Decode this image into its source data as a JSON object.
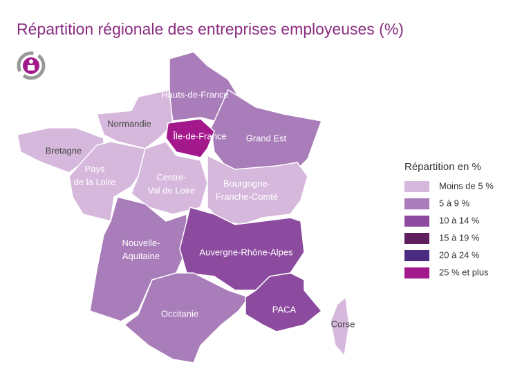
{
  "title": "Répartition régionale des entreprises employeuses (%)",
  "legend": {
    "title": "Répartition en %",
    "items": [
      {
        "label": "Moins de 5 %",
        "color": "#d6b8dc"
      },
      {
        "label": "5 à 9 %",
        "color": "#a97cba"
      },
      {
        "label": "10 à 14 %",
        "color": "#8c4b9f"
      },
      {
        "label": "15 à 19 %",
        "color": "#5e1f5c"
      },
      {
        "label": "20 à 24 %",
        "color": "#4b2a82"
      },
      {
        "label": "25 % et plus",
        "color": "#a3198c"
      }
    ]
  },
  "regions": [
    {
      "label": [
        "Hauts-de-France"
      ],
      "color": "#a97cba"
    },
    {
      "label": [
        "Normandie"
      ],
      "color": "#d6b8dc"
    },
    {
      "label": [
        "Bretagne"
      ],
      "color": "#d6b8dc"
    },
    {
      "label": [
        "Île-de-France"
      ],
      "color": "#a3198c"
    },
    {
      "label": [
        "Grand Est"
      ],
      "color": "#a97cba"
    },
    {
      "label": [
        "Pays",
        "de la Loire"
      ],
      "color": "#d6b8dc"
    },
    {
      "label": [
        "Centre-",
        "Val de Loire"
      ],
      "color": "#d6b8dc"
    },
    {
      "label": [
        "Bourgogne-",
        "Franche-Comté"
      ],
      "color": "#d6b8dc"
    },
    {
      "label": [
        "Nouvelle-",
        "Aquitaine"
      ],
      "color": "#a97cba"
    },
    {
      "label": [
        "Auvergne-Rhône-Alpes"
      ],
      "color": "#8c4b9f"
    },
    {
      "label": [
        "Occitanie"
      ],
      "color": "#a97cba"
    },
    {
      "label": [
        "PACA"
      ],
      "color": "#8c4b9f"
    },
    {
      "label": [
        "Corse"
      ],
      "color": "#d6b8dc"
    }
  ]
}
